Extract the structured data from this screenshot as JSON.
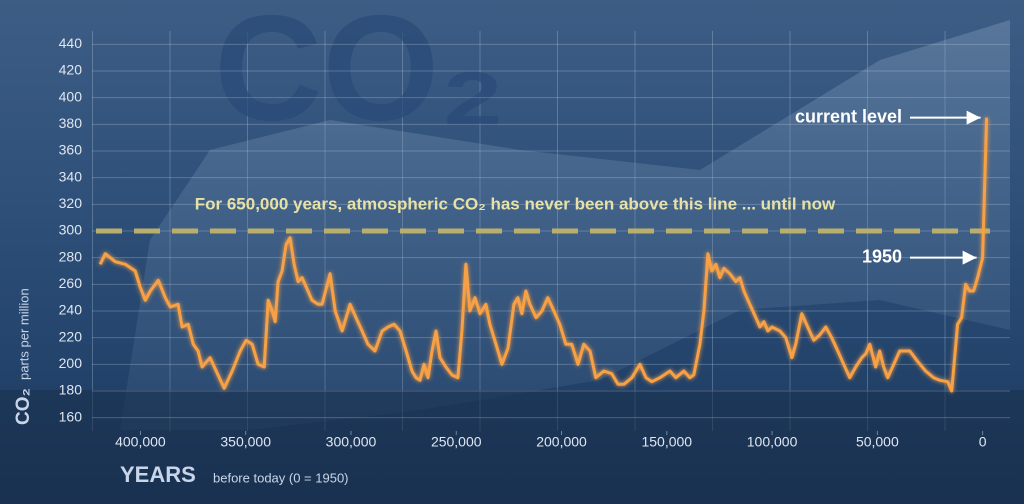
{
  "chart_data": {
    "type": "line",
    "background_text": "CO₂",
    "annotation": "For 650,000 years, atmospheric CO₂ has never been above this line ... until now",
    "threshold": 300,
    "current_label": "current level",
    "reference_label": "1950",
    "y_label": "CO₂",
    "y_label_unit": "parts per million",
    "x_label": "YEARS",
    "x_label_note": "before today (0 = 1950)",
    "color": "#f7a044",
    "threshold_color": "#b9ae6c",
    "grid": true,
    "xlim": [
      423000,
      -13000
    ],
    "ylim": [
      150,
      450
    ],
    "xticks": [
      {
        "value": 400000,
        "label": "400,000"
      },
      {
        "value": 350000,
        "label": "350,000"
      },
      {
        "value": 300000,
        "label": "300,000"
      },
      {
        "value": 250000,
        "label": "250,000"
      },
      {
        "value": 200000,
        "label": "200,000"
      },
      {
        "value": 150000,
        "label": "150,000"
      },
      {
        "value": 100000,
        "label": "100,000"
      },
      {
        "value": 50000,
        "label": "50,000"
      },
      0
    ],
    "yticks": [
      160,
      180,
      200,
      220,
      240,
      260,
      280,
      300,
      320,
      340,
      360,
      380,
      400,
      420,
      440
    ],
    "x": [
      419100,
      416700,
      412000,
      407200,
      402500,
      400100,
      397700,
      395300,
      391500,
      388200,
      385800,
      382100,
      380200,
      377300,
      374900,
      372600,
      370700,
      366900,
      364000,
      360200,
      356400,
      352600,
      349800,
      346900,
      344100,
      341200,
      339300,
      337400,
      336000,
      334600,
      332700,
      330800,
      328900,
      327000,
      325100,
      323200,
      320400,
      318500,
      315600,
      313700,
      309900,
      307500,
      304200,
      300400,
      297600,
      294700,
      291900,
      288600,
      285200,
      282400,
      279500,
      276700,
      273800,
      271000,
      269100,
      267200,
      265300,
      263400,
      261500,
      259600,
      257700,
      254900,
      252000,
      249200,
      247300,
      245400,
      243500,
      241100,
      238700,
      235900,
      234000,
      231100,
      228300,
      225400,
      222600,
      220700,
      218800,
      216900,
      215000,
      212100,
      209300,
      206500,
      203600,
      200800,
      197900,
      195100,
      192200,
      189400,
      186500,
      183700,
      179900,
      176100,
      173200,
      170400,
      166600,
      162800,
      159900,
      157100,
      153300,
      148500,
      145700,
      141900,
      139100,
      137200,
      134300,
      132400,
      130500,
      128600,
      126700,
      124800,
      122900,
      120100,
      117200,
      115300,
      113400,
      110600,
      107700,
      105800,
      103900,
      102000,
      100100,
      96300,
      93500,
      90600,
      88800,
      85900,
      83100,
      80200,
      77400,
      74500,
      71700,
      68800,
      66000,
      63100,
      60300,
      57400,
      55500,
      53600,
      50800,
      48900,
      47000,
      45100,
      42200,
      39400,
      34600,
      30800,
      27100,
      23300,
      20400,
      16600,
      14700,
      11900,
      10000,
      8100,
      6200,
      4300,
      2400,
      0,
      -1900
    ],
    "values": [
      275,
      283,
      277,
      275,
      270,
      258,
      248,
      255,
      263,
      250,
      243,
      245,
      228,
      230,
      215,
      210,
      198,
      205,
      195,
      182,
      195,
      210,
      218,
      215,
      200,
      198,
      248,
      240,
      232,
      262,
      270,
      290,
      295,
      275,
      262,
      265,
      255,
      248,
      245,
      245,
      268,
      240,
      225,
      245,
      235,
      225,
      215,
      210,
      225,
      228,
      230,
      225,
      210,
      195,
      190,
      188,
      200,
      190,
      210,
      225,
      205,
      198,
      192,
      190,
      225,
      275,
      240,
      250,
      238,
      245,
      230,
      215,
      200,
      212,
      245,
      250,
      238,
      255,
      245,
      235,
      240,
      250,
      240,
      230,
      215,
      215,
      200,
      215,
      210,
      190,
      195,
      193,
      185,
      185,
      190,
      200,
      190,
      187,
      190,
      195,
      190,
      195,
      190,
      192,
      215,
      240,
      283,
      270,
      275,
      265,
      272,
      268,
      262,
      265,
      255,
      245,
      235,
      228,
      232,
      225,
      228,
      225,
      220,
      205,
      215,
      238,
      228,
      218,
      222,
      228,
      220,
      210,
      200,
      190,
      198,
      205,
      208,
      215,
      198,
      210,
      198,
      190,
      200,
      210,
      210,
      202,
      195,
      190,
      188,
      187,
      180,
      230,
      235,
      260,
      255,
      255,
      265,
      280,
      385
    ]
  }
}
